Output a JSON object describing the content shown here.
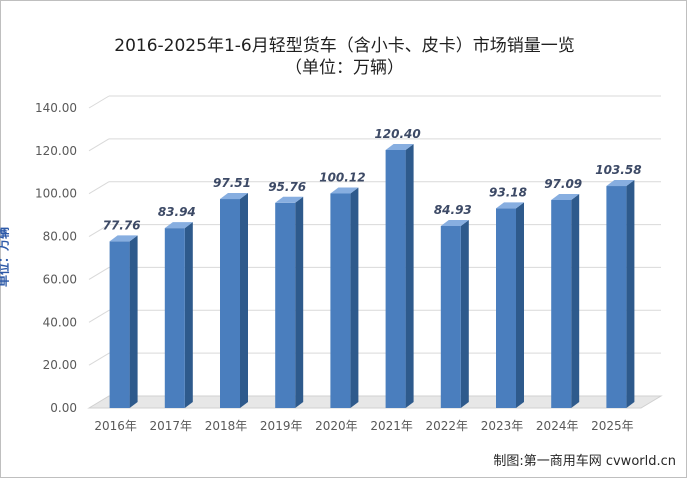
{
  "title": "2016-2025年1-6月轻型货车（含小卡、皮卡）市场销量一览",
  "subtitle": "（单位：万辆）",
  "credit": "制图:第一商用车网 cvworld.cn",
  "chart_data": {
    "type": "bar",
    "ylabel": "单位：万辆",
    "ylim": [
      0,
      140
    ],
    "ytick_step": 20,
    "ytick_decimals": 2,
    "grid": true,
    "style": "3d-column",
    "colors": {
      "bar_front": "#4a7ebe",
      "bar_side": "#2e5a8c",
      "bar_top": "#87aee0",
      "grid": "#d9d9d9",
      "floor": "#e7e7e7"
    },
    "categories": [
      "2016年",
      "2017年",
      "2018年",
      "2019年",
      "2020年",
      "2021年",
      "2022年",
      "2023年",
      "2024年",
      "2025年"
    ],
    "values": [
      77.76,
      83.94,
      97.51,
      95.76,
      100.12,
      120.4,
      84.93,
      93.18,
      97.09,
      103.58
    ],
    "data_labels": [
      "77.76",
      "83.94",
      "97.51",
      "95.76",
      "100.12",
      "120.40",
      "84.93",
      "93.18",
      "97.09",
      "103.58"
    ]
  }
}
